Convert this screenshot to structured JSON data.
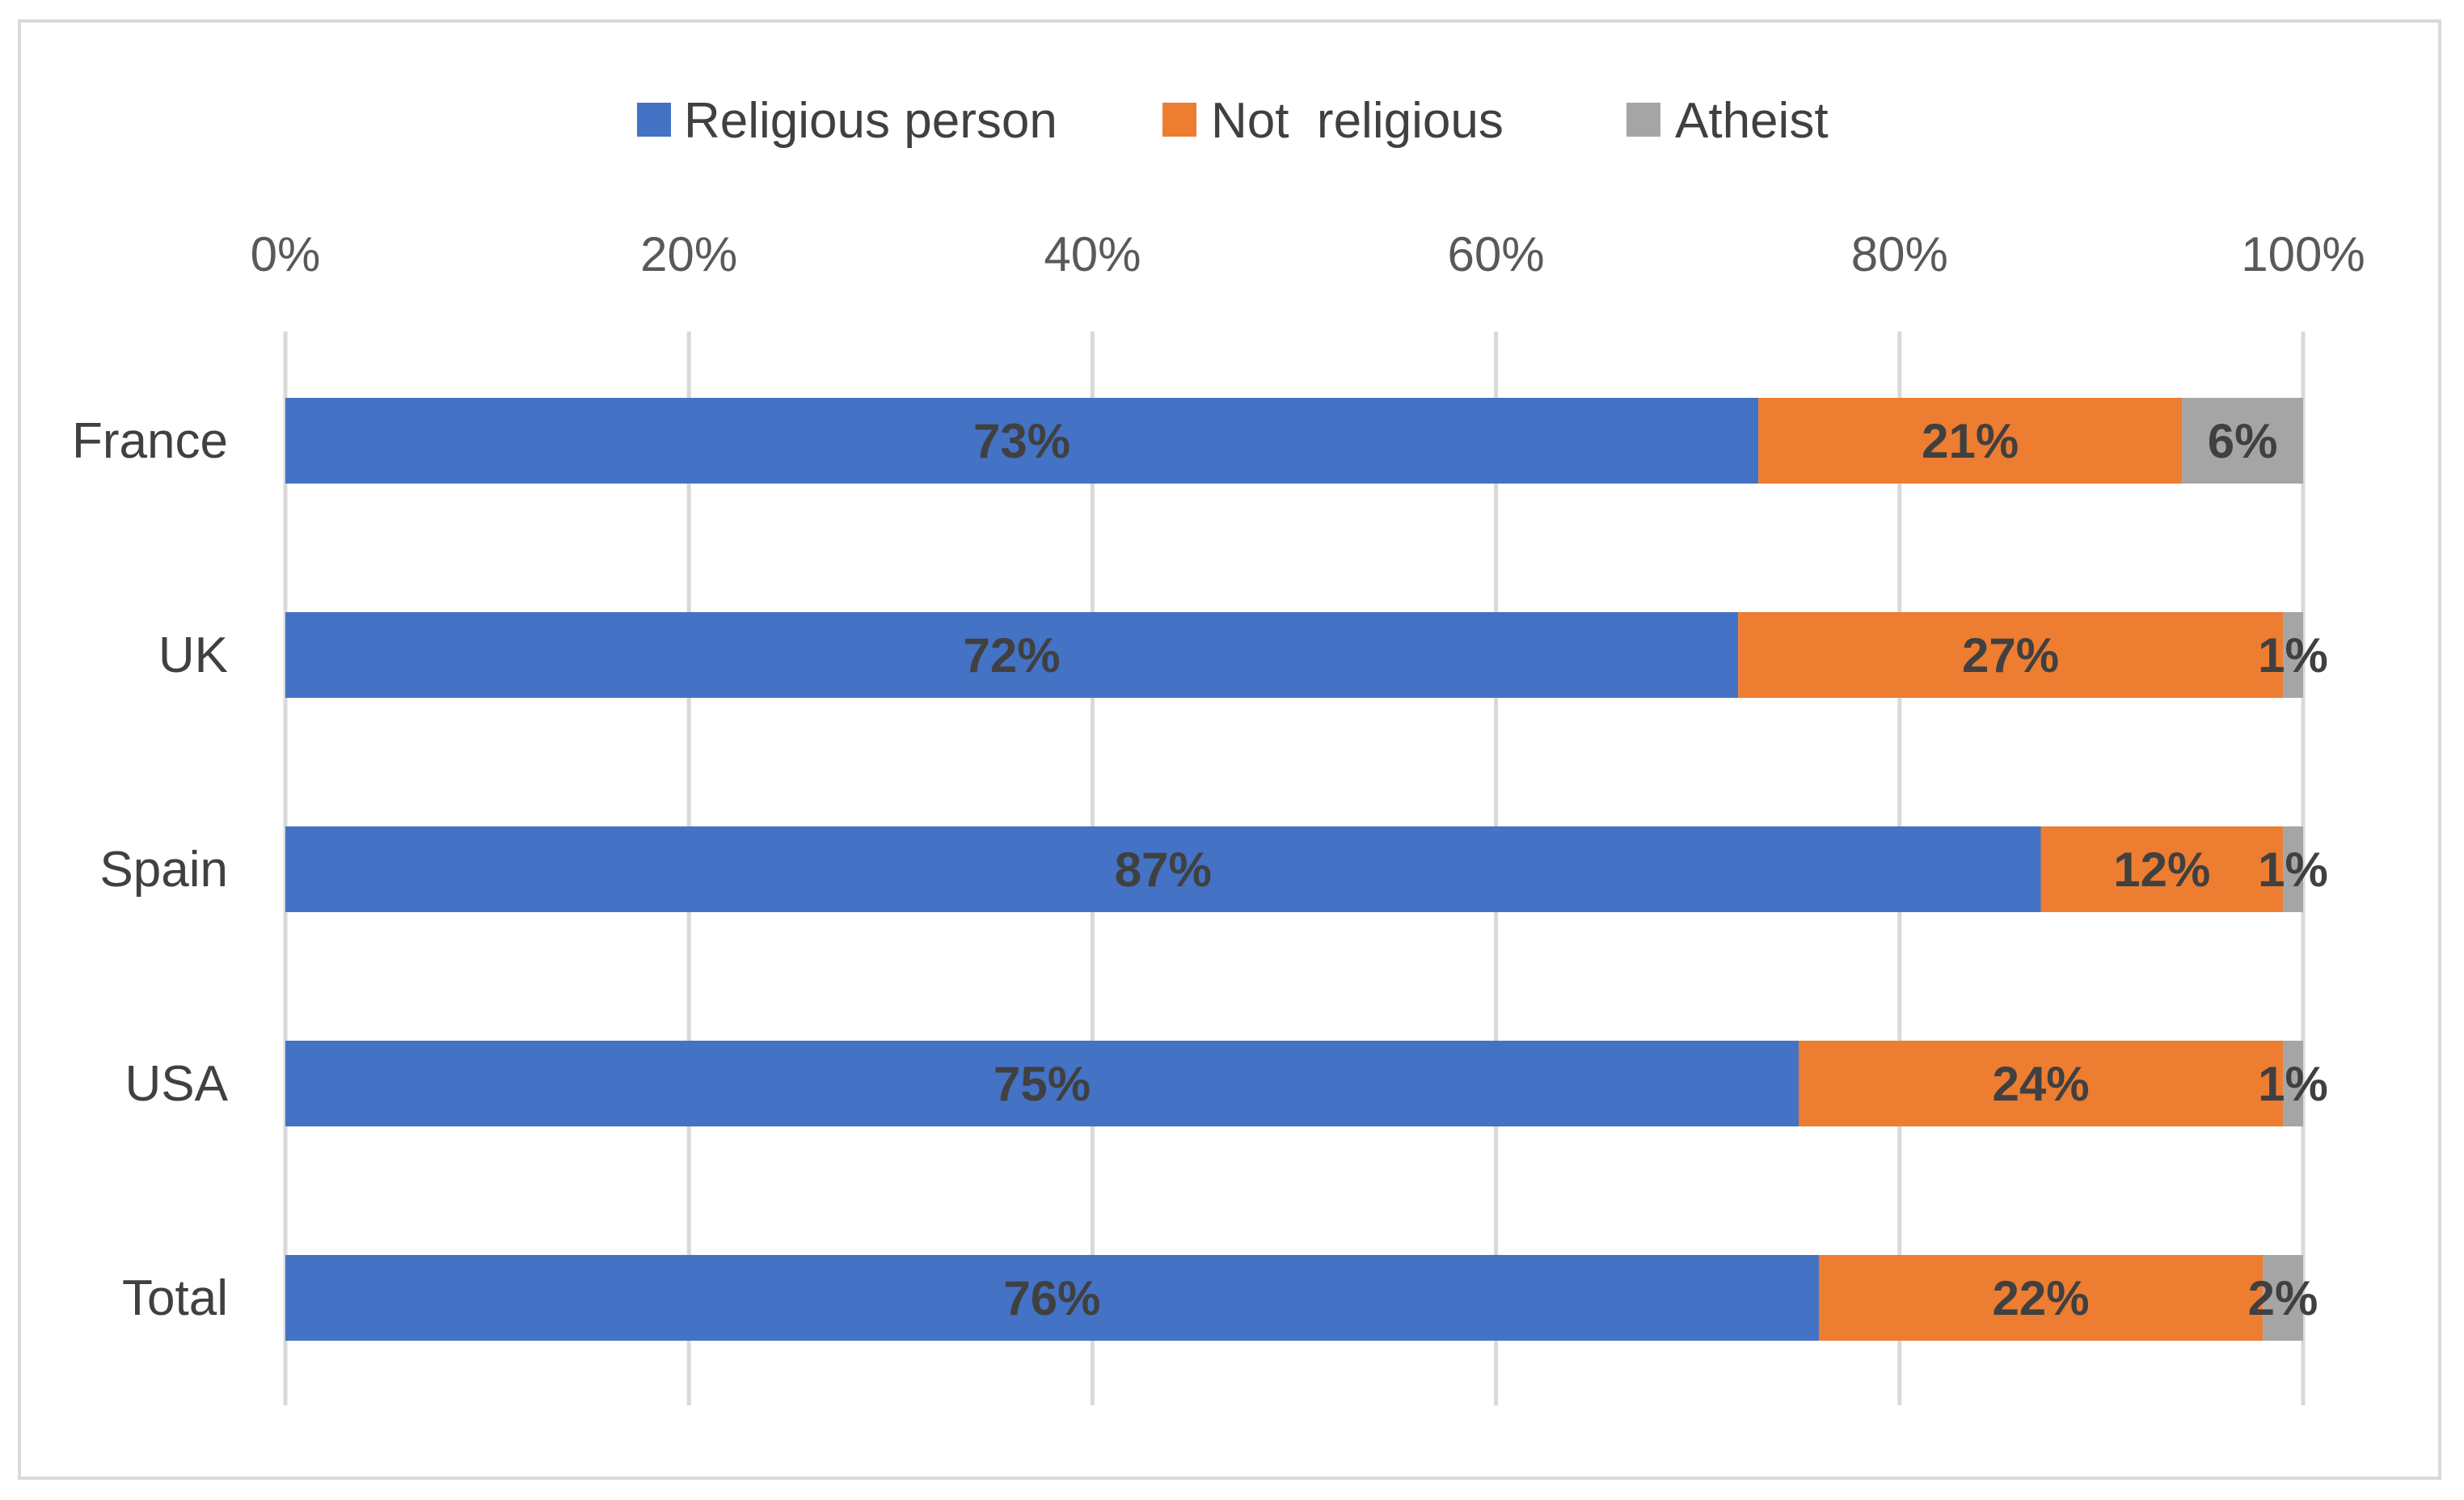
{
  "chart_data": {
    "type": "bar",
    "orientation": "horizontal",
    "stacked": "percent",
    "title": "",
    "xlabel": "",
    "ylabel": "",
    "xlim": [
      0,
      100
    ],
    "x_ticks": [
      "0%",
      "20%",
      "40%",
      "60%",
      "80%",
      "100%"
    ],
    "categories": [
      "France",
      "UK",
      "Spain",
      "USA",
      "Total"
    ],
    "series": [
      {
        "name": "Religious person",
        "color": "#4472C4",
        "values": [
          73,
          72,
          87,
          75,
          76
        ],
        "labels": [
          "73%",
          "72%",
          "87%",
          "75%",
          "76%"
        ]
      },
      {
        "name": "Not  religious",
        "color": "#ED7D31",
        "values": [
          21,
          27,
          12,
          24,
          22
        ],
        "labels": [
          "21%",
          "27%",
          "12%",
          "24%",
          "22%"
        ]
      },
      {
        "name": "Atheist",
        "color": "#A5A5A5",
        "values": [
          6,
          1,
          1,
          1,
          2
        ],
        "labels": [
          "6%",
          "1%",
          "1%",
          "1%",
          "2%"
        ]
      }
    ],
    "legend_position": "top",
    "grid": true
  }
}
